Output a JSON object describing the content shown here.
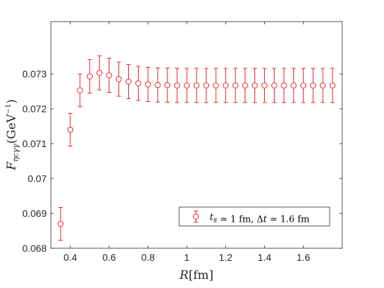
{
  "chart_data": {
    "type": "scatter",
    "xlabel": "R[fm]",
    "ylabel": "F_{ηcγγ}(GeV^{-1})",
    "xlim": [
      0.3,
      1.8
    ],
    "ylim": [
      0.068,
      0.0745
    ],
    "xticks": [
      0.4,
      0.6,
      0.8,
      1,
      1.2,
      1.4,
      1.6
    ],
    "xtick_labels": [
      "0.4",
      "0.6",
      "0.8",
      "1",
      "1.2",
      "1.4",
      "1.6"
    ],
    "yticks": [
      0.068,
      0.069,
      0.07,
      0.071,
      0.072,
      0.073
    ],
    "ytick_labels": [
      "0.068",
      "0.069",
      "0.07",
      "0.071",
      "0.072",
      "0.073"
    ],
    "grid": false,
    "legend_position": "bottom-right",
    "series": [
      {
        "name": "t_s ≃ 1 fm, Δt ≃ 1.6 fm",
        "color": "#e8202a",
        "marker": "circle",
        "x": [
          0.35,
          0.4,
          0.45,
          0.5,
          0.55,
          0.6,
          0.65,
          0.7,
          0.75,
          0.8,
          0.85,
          0.9,
          0.95,
          1.0,
          1.05,
          1.1,
          1.15,
          1.2,
          1.25,
          1.3,
          1.35,
          1.4,
          1.45,
          1.5,
          1.55,
          1.6,
          1.65,
          1.7,
          1.75
        ],
        "y": [
          0.0687,
          0.0714,
          0.07253,
          0.07293,
          0.07303,
          0.07296,
          0.07285,
          0.07278,
          0.07273,
          0.0727,
          0.07268,
          0.07268,
          0.07267,
          0.07267,
          0.07267,
          0.07267,
          0.07267,
          0.07267,
          0.07267,
          0.07267,
          0.07267,
          0.07267,
          0.07267,
          0.07267,
          0.07267,
          0.07267,
          0.07267,
          0.07267,
          0.07267
        ],
        "yerr": [
          0.00047,
          0.00047,
          0.00047,
          0.00048,
          0.00049,
          0.00049,
          0.00049,
          0.00049,
          0.00049,
          0.00049,
          0.00049,
          0.00049,
          0.00049,
          0.00049,
          0.00049,
          0.00049,
          0.00049,
          0.00049,
          0.00049,
          0.00049,
          0.00049,
          0.00049,
          0.00049,
          0.00049,
          0.00049,
          0.00049,
          0.00049,
          0.00049,
          0.00049
        ]
      }
    ],
    "legend": {
      "entries": [
        {
          "label_parts": [
            {
              "text": "t",
              "style": "italic"
            },
            {
              "text": "s",
              "style": "italic-sub"
            },
            {
              "text": " ≃ 1 fm, Δ",
              "style": "normal"
            },
            {
              "text": "t",
              "style": "italic"
            },
            {
              "text": " ≃ 1.6 fm",
              "style": "normal"
            }
          ]
        }
      ]
    }
  }
}
